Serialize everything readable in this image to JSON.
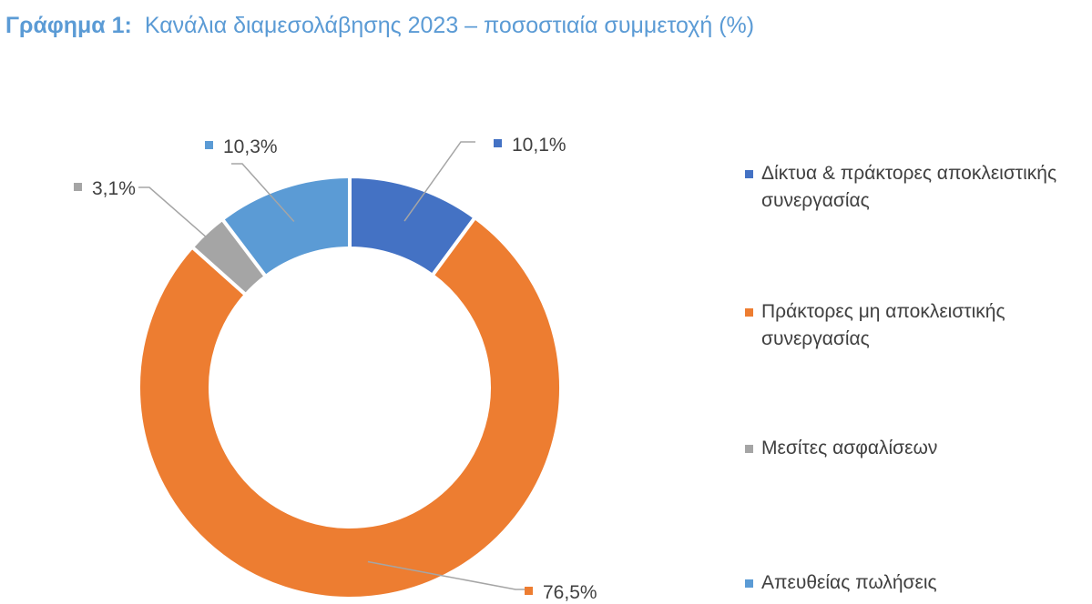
{
  "title": {
    "prefix": "Γράφημα 1:",
    "text": "Κανάλια διαμεσολάβησης 2023 – ποσοστιαία συμμετοχή (%)"
  },
  "colors": {
    "title": "#5b9bd5",
    "text": "#404040",
    "leader": "#a5a5a5"
  },
  "chart_data": {
    "type": "pie",
    "variant": "donut",
    "start_angle_deg": 0,
    "direction": "clockwise",
    "legend_position": "right",
    "slices": [
      {
        "name": "Δίκτυα & πράκτορες αποκλειστικής συνεργασίας",
        "value": 10.1,
        "label": "10,1%",
        "color": "#4472c4"
      },
      {
        "name": "Πράκτορες μη αποκλειστικής συνεργασίας",
        "value": 76.5,
        "label": "76,5%",
        "color": "#ed7d31"
      },
      {
        "name": "Μεσίτες ασφαλίσεων",
        "value": 3.1,
        "label": "3,1%",
        "color": "#a5a5a5"
      },
      {
        "name": "Απευθείας πωλήσεις",
        "value": 10.3,
        "label": "10,3%",
        "color": "#5b9bd5"
      }
    ]
  }
}
